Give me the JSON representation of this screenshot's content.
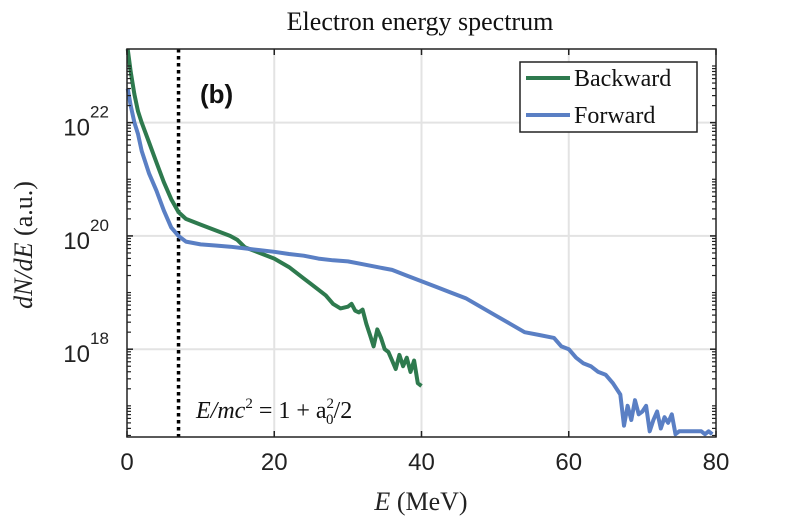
{
  "chart_data": {
    "type": "line",
    "title": "Electron energy spectrum",
    "panel_label": "(b)",
    "xlabel_var": "E",
    "xlabel_unit": "(MeV)",
    "ylabel_var": "dN/dE",
    "ylabel_unit": "(a.u.)",
    "x_scale": "linear",
    "y_scale": "log",
    "xlim": [
      0,
      80
    ],
    "ylim_log10": [
      16.45,
      23.3
    ],
    "x_ticks": [
      0,
      20,
      40,
      60,
      80
    ],
    "x_tick_labels": [
      "0",
      "20",
      "40",
      "60",
      "80"
    ],
    "y_ticks_log10": [
      18,
      20,
      22
    ],
    "y_tick_base": "10",
    "y_tick_exponents": [
      "18",
      "20",
      "22"
    ],
    "grid": true,
    "legend_position": "top-right",
    "annotation": {
      "text_lhs": "E/mc",
      "text_rhs": " = 1 + a",
      "text_tail": "/2",
      "x_position": 7,
      "line_style": "dotted"
    },
    "series": [
      {
        "name": "Backward",
        "color": "#2e7a4e",
        "x": [
          0.1,
          0.5,
          1,
          1.5,
          2,
          3,
          4,
          5,
          6,
          7,
          8,
          10,
          12,
          14,
          15,
          16,
          18,
          20,
          22,
          24,
          25,
          26,
          27,
          28,
          29,
          30,
          30.5,
          31,
          31.5,
          32,
          32.5,
          33,
          33.5,
          34,
          34.5,
          35,
          35.5,
          36,
          36.5,
          37,
          37.5,
          38,
          38.5,
          39,
          39.5,
          40
        ],
        "log10_y": [
          23.3,
          22.9,
          22.5,
          22.2,
          22.0,
          21.65,
          21.3,
          20.95,
          20.65,
          20.42,
          20.3,
          20.2,
          20.1,
          20.0,
          19.93,
          19.8,
          19.7,
          19.6,
          19.45,
          19.25,
          19.15,
          19.05,
          18.95,
          18.8,
          18.72,
          18.75,
          18.8,
          18.68,
          18.65,
          18.7,
          18.45,
          18.25,
          18.05,
          18.35,
          18.2,
          18.0,
          17.95,
          17.8,
          17.65,
          17.9,
          17.7,
          17.85,
          17.6,
          17.8,
          17.4,
          17.35
        ]
      },
      {
        "name": "Forward",
        "color": "#5a7fc4",
        "x": [
          0.1,
          0.5,
          1,
          1.5,
          2,
          3,
          4,
          5,
          6,
          7,
          8,
          10,
          12,
          14,
          16,
          18,
          20,
          22,
          24,
          26,
          28,
          30,
          32,
          34,
          36,
          38,
          40,
          42,
          44,
          46,
          48,
          50,
          52,
          54,
          56,
          58,
          59,
          60,
          61,
          62,
          63,
          64,
          65,
          66,
          67,
          67.5,
          68,
          68.5,
          69,
          69.5,
          70,
          70.5,
          71,
          71.5,
          72,
          72.5,
          73,
          73.5,
          74,
          74.5,
          75,
          78,
          78.5,
          79,
          79.5
        ],
        "log10_y": [
          22.6,
          22.3,
          22.0,
          21.8,
          21.5,
          21.1,
          20.8,
          20.45,
          20.15,
          20.0,
          19.9,
          19.85,
          19.83,
          19.81,
          19.78,
          19.75,
          19.72,
          19.68,
          19.65,
          19.6,
          19.57,
          19.55,
          19.5,
          19.45,
          19.4,
          19.3,
          19.2,
          19.1,
          19.0,
          18.9,
          18.75,
          18.6,
          18.45,
          18.3,
          18.25,
          18.2,
          18.05,
          18.0,
          17.85,
          17.75,
          17.7,
          17.6,
          17.55,
          17.4,
          17.2,
          16.65,
          17.0,
          16.75,
          17.1,
          16.85,
          16.9,
          17.0,
          16.55,
          16.75,
          16.9,
          16.6,
          16.8,
          16.7,
          16.85,
          16.5,
          16.55,
          16.55,
          16.5,
          16.55,
          16.5
        ]
      }
    ]
  }
}
